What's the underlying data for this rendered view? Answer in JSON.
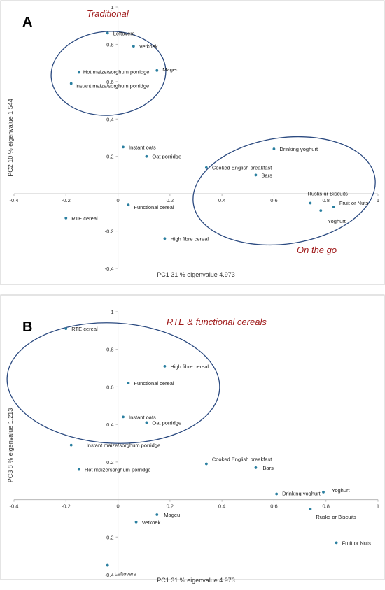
{
  "chart_data": [
    {
      "type": "scatter",
      "panel_label": "A",
      "xlabel": "PC1 31 % eigenvalue  4.973",
      "ylabel": "PC2 10 % eigenvalue  1.544",
      "xlim": [
        -0.4,
        1.0
      ],
      "ylim": [
        -0.4,
        1.0
      ],
      "xticks": [
        "-0.4",
        "-0.2",
        "0",
        "0.2",
        "0.4",
        "0.6",
        "0.8",
        "1"
      ],
      "yticks": [
        "-0.4",
        "-0.2",
        "0",
        "0.2",
        "0.4",
        "0.6",
        "0.8",
        "1"
      ],
      "grid": false,
      "groups": [
        {
          "label": "Traditional",
          "members": [
            "Leftovers",
            "Vetkoek",
            "Mageu",
            "Hot maize/sorghum porridge",
            "Instant maize/sorghum porridge"
          ]
        },
        {
          "label": "On the go",
          "members": [
            "Drinking yoghurt",
            "Cooked English breakfast",
            "Bars",
            "Rusks or Biscuits",
            "Fruit or Nuts",
            "Yoghurt"
          ]
        }
      ],
      "points": [
        {
          "label": "Leftovers",
          "x": -0.04,
          "y": 0.86
        },
        {
          "label": "Vetkoek",
          "x": 0.06,
          "y": 0.79
        },
        {
          "label": "Mageu",
          "x": 0.15,
          "y": 0.66
        },
        {
          "label": "Hot maize/sorghum porridge",
          "x": -0.15,
          "y": 0.65
        },
        {
          "label": "Instant maize/sorghum porridge",
          "x": -0.18,
          "y": 0.59
        },
        {
          "label": "Instant oats",
          "x": 0.02,
          "y": 0.25
        },
        {
          "label": "Oat porridge",
          "x": 0.11,
          "y": 0.2
        },
        {
          "label": "Drinking yoghurt",
          "x": 0.6,
          "y": 0.24
        },
        {
          "label": "Cooked English breakfast",
          "x": 0.34,
          "y": 0.14
        },
        {
          "label": "Bars",
          "x": 0.53,
          "y": 0.1
        },
        {
          "label": "Rusks or Biscuits",
          "x": 0.74,
          "y": -0.05
        },
        {
          "label": "Fruit or Nuts",
          "x": 0.83,
          "y": -0.07
        },
        {
          "label": "Yoghurt",
          "x": 0.78,
          "y": -0.09
        },
        {
          "label": "Functional cereal",
          "x": 0.04,
          "y": -0.06
        },
        {
          "label": "RTE cereal",
          "x": -0.2,
          "y": -0.13
        },
        {
          "label": "High fibre cereal",
          "x": 0.18,
          "y": -0.24
        }
      ]
    },
    {
      "type": "scatter",
      "panel_label": "B",
      "xlabel": "PC1 31 % eigenvalue  4.973",
      "ylabel": "PC3 8 % eigenvalue  1.213",
      "xlim": [
        -0.4,
        1.0
      ],
      "ylim": [
        -0.4,
        1.0
      ],
      "xticks": [
        "-0.4",
        "-0.2",
        "0",
        "0.2",
        "0.4",
        "0.6",
        "0.8",
        "1"
      ],
      "yticks": [
        "-0.4",
        "-0.2",
        "0",
        "0.2",
        "0.4",
        "0.6",
        "0.8",
        "1"
      ],
      "grid": false,
      "groups": [
        {
          "label": "RTE & functional cereals",
          "members": [
            "RTE cereal",
            "High fibre cereal",
            "Functional cereal",
            "Instant oats",
            "Oat porridge"
          ]
        }
      ],
      "points": [
        {
          "label": "RTE cereal",
          "x": -0.2,
          "y": 0.91
        },
        {
          "label": "High fibre cereal",
          "x": 0.18,
          "y": 0.71
        },
        {
          "label": "Functional cereal",
          "x": 0.04,
          "y": 0.62
        },
        {
          "label": "Instant oats",
          "x": 0.02,
          "y": 0.44
        },
        {
          "label": "Oat porridge",
          "x": 0.11,
          "y": 0.41
        },
        {
          "label": "Instant maize/sorghum porridge",
          "x": -0.18,
          "y": 0.29
        },
        {
          "label": "Hot maize/sorghum porridge",
          "x": -0.15,
          "y": 0.16
        },
        {
          "label": "Cooked English breakfast",
          "x": 0.34,
          "y": 0.19
        },
        {
          "label": "Bars",
          "x": 0.53,
          "y": 0.17
        },
        {
          "label": "Drinking yoghurt",
          "x": 0.61,
          "y": 0.03
        },
        {
          "label": "Yoghurt",
          "x": 0.79,
          "y": 0.04
        },
        {
          "label": "Rusks or Biscuits",
          "x": 0.74,
          "y": -0.05
        },
        {
          "label": "Fruit or Nuts",
          "x": 0.84,
          "y": -0.23
        },
        {
          "label": "Mageu",
          "x": 0.15,
          "y": -0.08
        },
        {
          "label": "Vetkoek",
          "x": 0.07,
          "y": -0.12
        },
        {
          "label": "Leftovers",
          "x": -0.04,
          "y": -0.35
        }
      ]
    }
  ]
}
